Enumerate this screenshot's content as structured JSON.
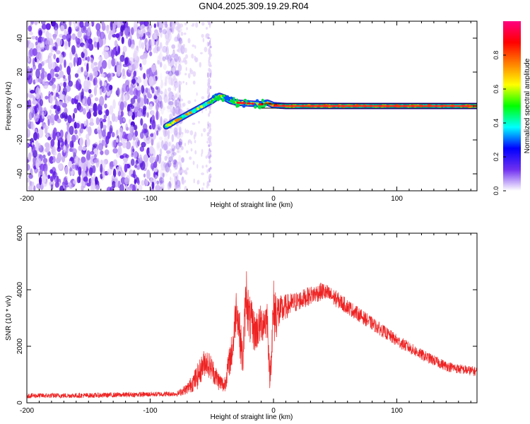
{
  "title": "GN04.2025.309.19.29.R04",
  "chart_data": [
    {
      "type": "heatmap",
      "name": "spectrogram",
      "xlabel": "Height of straight line (km)",
      "ylabel": "Frequency (Hz)",
      "xlim": [
        -200,
        165
      ],
      "ylim": [
        -50,
        50
      ],
      "xticks": [
        -200,
        -100,
        0,
        100
      ],
      "xtick_labels": [
        "-200",
        "-100",
        "0",
        "100"
      ],
      "yticks": [
        -40,
        -20,
        0,
        20,
        40
      ],
      "ytick_labels": [
        "-40",
        "-20",
        "0",
        "20",
        "40"
      ],
      "noise_region_x": [
        -200,
        -85
      ],
      "noise_streak_x": -52,
      "signal_ridge": {
        "x": [
          -87,
          -80,
          -70,
          -60,
          -50,
          -44,
          -40,
          -35,
          -30,
          -20,
          -10,
          -5,
          0,
          10,
          50,
          100,
          165
        ],
        "frequency": [
          -12,
          -9,
          -5,
          -1,
          3,
          6,
          5,
          3,
          2,
          1.5,
          1,
          2,
          0.5,
          0,
          0,
          0,
          0
        ]
      },
      "reference_line_frequency": 0,
      "colorbar": {
        "label": "Normalized spectral amplitude",
        "range": [
          0,
          1
        ],
        "ticks": [
          0.0,
          0.2,
          0.4,
          0.6,
          0.8
        ],
        "tick_labels": [
          "0.0",
          "0.2",
          "0.4",
          "0.6",
          "0.8"
        ],
        "colors": [
          "#ffffff",
          "#7030f0",
          "#0000ff",
          "#00ffff",
          "#00ff00",
          "#ffff00",
          "#ff8000",
          "#ff0000",
          "#ff0080"
        ]
      }
    },
    {
      "type": "line",
      "name": "snr",
      "xlabel": "Height of straight line (km)",
      "ylabel": "SNR (10 * v/v)",
      "xlim": [
        -200,
        165
      ],
      "ylim": [
        0,
        6000
      ],
      "xticks": [
        -200,
        -100,
        0,
        100
      ],
      "xtick_labels": [
        "-200",
        "-100",
        "0",
        "100"
      ],
      "yticks": [
        0,
        2000,
        4000,
        6000
      ],
      "ytick_labels": [
        "0",
        "2000",
        "4000",
        "6000"
      ],
      "color": "#ee2222",
      "envelope": {
        "x": [
          -200,
          -150,
          -100,
          -78,
          -70,
          -62,
          -55,
          -50,
          -45,
          -40,
          -33,
          -30,
          -25,
          -22,
          -20,
          -15,
          -10,
          -5,
          -3,
          0,
          5,
          10,
          20,
          30,
          40,
          50,
          60,
          70,
          80,
          90,
          100,
          110,
          120,
          130,
          140,
          150,
          165
        ],
        "base": [
          250,
          260,
          300,
          320,
          500,
          900,
          1500,
          1200,
          800,
          600,
          2000,
          3500,
          1500,
          4000,
          3000,
          2500,
          2800,
          3000,
          800,
          3200,
          3200,
          3400,
          3600,
          3800,
          3950,
          3700,
          3400,
          3100,
          2800,
          2500,
          2200,
          1950,
          1700,
          1500,
          1300,
          1200,
          1100
        ],
        "amplitude": [
          180,
          180,
          180,
          180,
          400,
          900,
          1000,
          900,
          700,
          600,
          1400,
          1600,
          1500,
          1900,
          1800,
          1500,
          1400,
          1500,
          700,
          2500,
          1200,
          900,
          700,
          650,
          650,
          600,
          550,
          500,
          480,
          460,
          440,
          420,
          400,
          380,
          360,
          350,
          340
        ]
      }
    }
  ]
}
